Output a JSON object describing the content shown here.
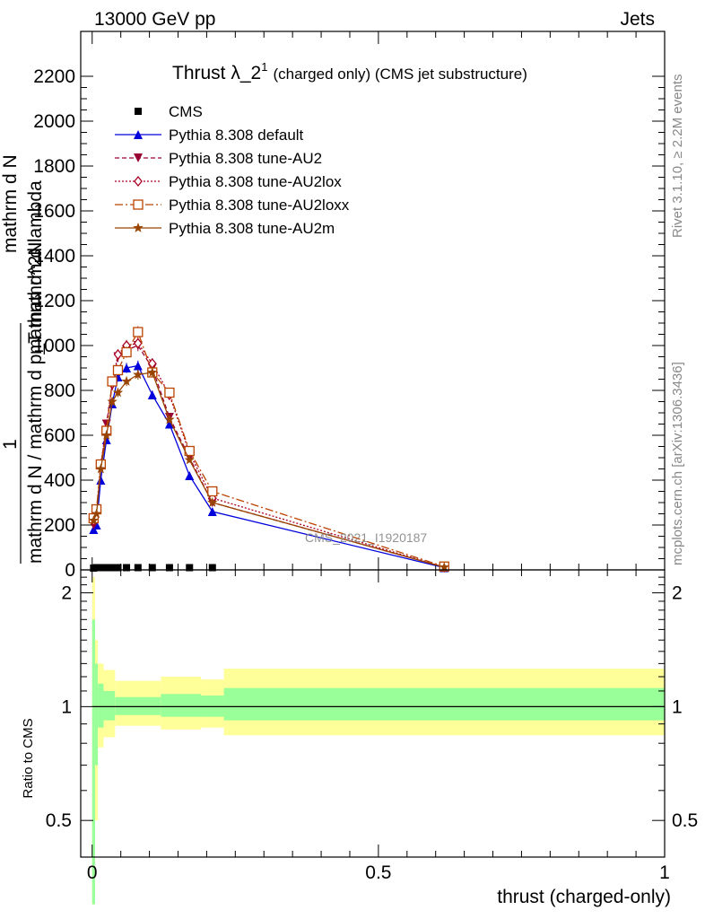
{
  "header": {
    "left": "13000 GeV pp",
    "right": "Jets"
  },
  "side": {
    "rivet": "Rivet 3.1.10, ≥ 2.2M events",
    "mcplots": "mcplots.cern.ch [arXiv:1306.3436]"
  },
  "chart_data": [
    {
      "type": "line",
      "title_main": "Thrust λ_2",
      "title_sup": "1",
      "title_rest": "(charged only) (CMS jet substructure)",
      "ylabel_numerator": "1",
      "ylabel_line1": "mathrm d N / mathrm d p_T mathrm d lambda",
      "ylabel_line2": "mathrm d N",
      "ylabel_line3": "mathrm d^2N",
      "watermark": "CMS_2021_I1920187",
      "xlim": [
        -0.02,
        1.0
      ],
      "ylim": [
        0,
        2400
      ],
      "yticks": [
        0,
        200,
        400,
        600,
        800,
        1000,
        1200,
        1400,
        1600,
        1800,
        2000,
        2200
      ],
      "ytick_labels": [
        "0",
        "200",
        "400",
        "600",
        "800",
        "1000",
        "1200",
        "1400",
        "1600",
        "1800",
        "2000",
        "2200"
      ],
      "x": [
        0.0025,
        0.0075,
        0.015,
        0.025,
        0.035,
        0.045,
        0.06,
        0.08,
        0.105,
        0.135,
        0.17,
        0.21,
        0.615
      ],
      "series": [
        {
          "name": "CMS",
          "color": "#000000",
          "style": "marker-square",
          "values": [
            8,
            10,
            10,
            10,
            10,
            10,
            10,
            10,
            10,
            10,
            10,
            10,
            null
          ]
        },
        {
          "name": "Pythia 8.308 default",
          "color": "#0000dd",
          "style": "solid-triangle",
          "values": [
            180,
            200,
            400,
            580,
            740,
            860,
            900,
            910,
            780,
            650,
            420,
            260,
            10
          ]
        },
        {
          "name": "Pythia 8.308 tune-AU2",
          "color": "#990033",
          "style": "dashed-triangle-down",
          "values": [
            200,
            250,
            460,
            650,
            820,
            950,
            980,
            1000,
            900,
            680,
            500,
            300,
            12
          ]
        },
        {
          "name": "Pythia 8.308 tune-AU2lox",
          "color": "#aa0022",
          "style": "dotted-diamond",
          "values": [
            220,
            260,
            470,
            630,
            830,
            960,
            1000,
            1010,
            920,
            780,
            520,
            320,
            12
          ]
        },
        {
          "name": "Pythia 8.308 tune-AU2loxx",
          "color": "#bb4400",
          "style": "dashdot-open-square",
          "values": [
            230,
            270,
            470,
            620,
            840,
            890,
            970,
            1060,
            880,
            790,
            530,
            350,
            15
          ]
        },
        {
          "name": "Pythia 8.308 tune-AU2m",
          "color": "#994400",
          "style": "solid-star",
          "values": [
            220,
            250,
            450,
            600,
            750,
            790,
            840,
            870,
            880,
            670,
            490,
            300,
            12
          ]
        }
      ]
    },
    {
      "type": "area",
      "ylabel": "Ratio to CMS",
      "xlabel": "thrust (charged-only)",
      "xlim": [
        -0.02,
        1.0
      ],
      "ylim": [
        0.4,
        2.3
      ],
      "log_y": true,
      "xticks": [
        0,
        0.5,
        1
      ],
      "xtick_labels": [
        "0",
        "0.5",
        "1"
      ],
      "yticks": [
        0.5,
        1,
        2
      ],
      "ytick_labels": [
        "0.5",
        "1",
        "2"
      ],
      "reference": 1,
      "bins": [
        {
          "lo": 0.0,
          "hi": 0.005,
          "g": [
            0.3,
            1.7
          ],
          "y": [
            0.3,
            2.2
          ]
        },
        {
          "lo": 0.005,
          "hi": 0.01,
          "g": [
            0.7,
            1.3
          ],
          "y": [
            0.5,
            1.5
          ]
        },
        {
          "lo": 0.01,
          "hi": 0.02,
          "g": [
            0.88,
            1.15
          ],
          "y": [
            0.78,
            1.3
          ]
        },
        {
          "lo": 0.02,
          "hi": 0.04,
          "g": [
            0.92,
            1.1
          ],
          "y": [
            0.83,
            1.25
          ]
        },
        {
          "lo": 0.04,
          "hi": 0.12,
          "g": [
            0.95,
            1.06
          ],
          "y": [
            0.89,
            1.17
          ]
        },
        {
          "lo": 0.12,
          "hi": 0.19,
          "g": [
            0.94,
            1.08
          ],
          "y": [
            0.87,
            1.2
          ]
        },
        {
          "lo": 0.19,
          "hi": 0.23,
          "g": [
            0.94,
            1.07
          ],
          "y": [
            0.88,
            1.18
          ]
        },
        {
          "lo": 0.23,
          "hi": 1.0,
          "g": [
            0.92,
            1.12
          ],
          "y": [
            0.84,
            1.26
          ]
        }
      ]
    }
  ]
}
